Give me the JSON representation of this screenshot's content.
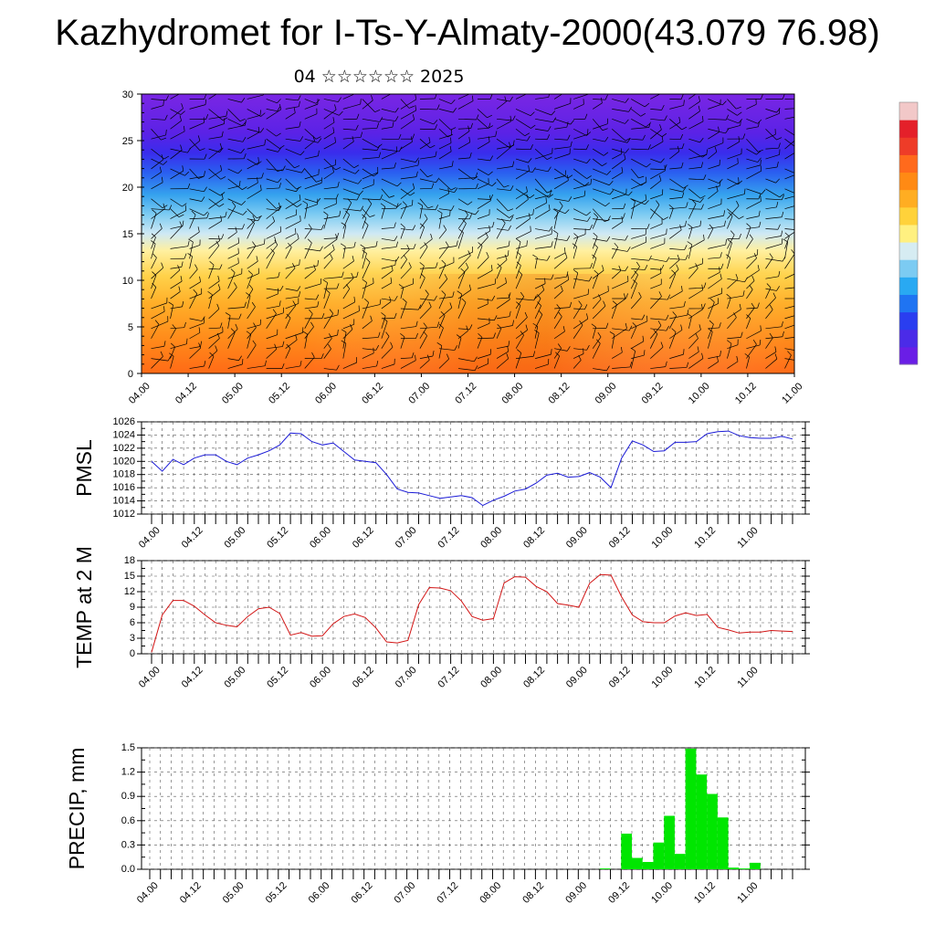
{
  "page": {
    "title": "Kazhydromet for I-Ts-Y-Almaty-2000(43.079 76.98)",
    "subtitle": "04 ☆☆☆☆☆☆ 2025"
  },
  "colors": {
    "pmsl_line": "#1a1ad6",
    "temp_line": "#d21414",
    "precip_bar": "#00e600",
    "colorbar": [
      "#6a1ee6",
      "#4b2be8",
      "#2a3ef0",
      "#1f74f2",
      "#29a9f2",
      "#7ccbf2",
      "#d6ecf2",
      "#fff080",
      "#ffd23a",
      "#ffad22",
      "#ff8a14",
      "#ff6a1c",
      "#ee3c28",
      "#e4202a",
      "#f2c8c8"
    ]
  },
  "chart_data": [
    {
      "type": "heatmap",
      "title": "",
      "xlabel": "",
      "ylabel": "",
      "ylim": [
        0,
        30
      ],
      "yticks": [
        "0",
        "5",
        "10",
        "15",
        "20",
        "25",
        "30"
      ],
      "xticks": [
        "04.00",
        "04.12",
        "05.00",
        "05.12",
        "06.00",
        "06.12",
        "07.00",
        "07.12",
        "08.00",
        "08.12",
        "09.00",
        "09.12",
        "10.00",
        "10.12",
        "11.00"
      ],
      "overlay": "wind barbs"
    },
    {
      "type": "line",
      "ylabel": "PMSL",
      "ylim": [
        1012,
        1026
      ],
      "yticks": [
        "1012",
        "1014",
        "1016",
        "1018",
        "1020",
        "1022",
        "1024",
        "1026"
      ],
      "xticks": [
        "04.00",
        "04.12",
        "05.00",
        "05.12",
        "06.00",
        "06.12",
        "07.00",
        "07.12",
        "08.00",
        "08.12",
        "09.00",
        "09.12",
        "10.00",
        "10.12",
        "11.00"
      ],
      "values": [
        1020.0,
        1018.5,
        1020.3,
        1019.5,
        1020.5,
        1021.0,
        1021.0,
        1020.0,
        1019.5,
        1020.5,
        1021.0,
        1021.6,
        1022.5,
        1024.3,
        1024.2,
        1023.0,
        1022.5,
        1022.8,
        1021.5,
        1020.2,
        1020.0,
        1019.8,
        1018.0,
        1015.8,
        1015.3,
        1015.2,
        1014.8,
        1014.4,
        1014.6,
        1014.8,
        1014.5,
        1013.3,
        1014.1,
        1014.7,
        1015.5,
        1015.8,
        1016.7,
        1017.9,
        1018.2,
        1017.6,
        1017.7,
        1018.3,
        1017.6,
        1016.0,
        1020.5,
        1023.1,
        1022.5,
        1021.5,
        1021.6,
        1022.9,
        1022.9,
        1023.0,
        1024.2,
        1024.5,
        1024.6,
        1023.9,
        1023.6,
        1023.5,
        1023.5,
        1023.8,
        1023.4
      ]
    },
    {
      "type": "line",
      "ylabel": "TEMP at 2 M",
      "ylim": [
        0,
        18
      ],
      "yticks": [
        "0",
        "3",
        "6",
        "9",
        "12",
        "15",
        "18"
      ],
      "xticks": [
        "04.00",
        "04.12",
        "05.00",
        "05.12",
        "06.00",
        "06.12",
        "07.00",
        "07.12",
        "08.00",
        "08.12",
        "09.00",
        "09.12",
        "10.00",
        "10.12",
        "11.00"
      ],
      "values": [
        0.3,
        7.5,
        10.3,
        10.3,
        9.2,
        7.5,
        6.0,
        5.5,
        5.2,
        7.2,
        8.7,
        9.0,
        7.8,
        3.6,
        4.1,
        3.4,
        3.5,
        5.8,
        7.2,
        7.7,
        7.0,
        5.0,
        2.3,
        2.1,
        2.6,
        9.5,
        12.8,
        12.7,
        12.2,
        10.2,
        7.2,
        6.5,
        6.8,
        13.7,
        14.9,
        14.8,
        13.0,
        12.0,
        9.7,
        9.4,
        9.0,
        13.6,
        15.3,
        15.2,
        11.0,
        7.5,
        6.2,
        6.0,
        6.0,
        7.3,
        7.9,
        7.4,
        7.6,
        5.1,
        4.6,
        4.0,
        4.2,
        4.2,
        4.5,
        4.4,
        4.3
      ]
    },
    {
      "type": "bar",
      "ylabel": "PRECIP, mm",
      "ylim": [
        0,
        1.5
      ],
      "yticks": [
        "0.0",
        "0.3",
        "0.6",
        "0.9",
        "1.2",
        "1.5"
      ],
      "xticks": [
        "04.00",
        "04.12",
        "05.00",
        "05.12",
        "06.00",
        "06.12",
        "07.00",
        "07.12",
        "08.00",
        "08.12",
        "09.00",
        "09.12",
        "10.00",
        "10.12",
        "11.00"
      ],
      "values": [
        0,
        0,
        0,
        0,
        0,
        0,
        0,
        0,
        0,
        0,
        0,
        0,
        0,
        0,
        0,
        0,
        0,
        0,
        0,
        0,
        0,
        0,
        0,
        0,
        0,
        0,
        0,
        0,
        0,
        0,
        0,
        0,
        0,
        0,
        0,
        0,
        0,
        0,
        0,
        0,
        0,
        0,
        0.01,
        0,
        0.44,
        0.14,
        0.09,
        0.33,
        0.66,
        0.19,
        1.49,
        1.17,
        0.93,
        0.64,
        0.02,
        0.01,
        0.08,
        0,
        0,
        0
      ]
    }
  ]
}
